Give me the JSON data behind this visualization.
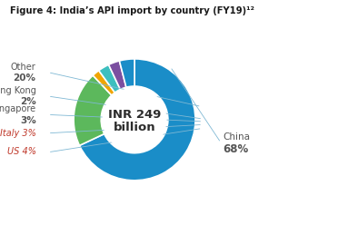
{
  "title": "Figure 4: India’s API import by country (FY19)¹²",
  "center_text_line1": "INR 249",
  "center_text_line2": "billion",
  "slices": [
    {
      "label": "China",
      "pct": 68,
      "color": "#1a8dc8"
    },
    {
      "label": "Other",
      "pct": 20,
      "color": "#5cb85c"
    },
    {
      "label": "Hong Kong",
      "pct": 2,
      "color": "#f0a500"
    },
    {
      "label": "Singapore",
      "pct": 3,
      "color": "#3dbfbf"
    },
    {
      "label": "Italy",
      "pct": 3,
      "color": "#7b4fa0"
    },
    {
      "label": "US",
      "pct": 4,
      "color": "#1a8dc8"
    }
  ],
  "label_colors": {
    "China": "#555555",
    "Other": "#555555",
    "Hong Kong": "#555555",
    "Singapore": "#555555",
    "Italy": "#c0392b",
    "US": "#c0392b"
  },
  "background_color": "#ffffff",
  "title_color": "#1a1a1a",
  "center_text_color": "#2c2c2c",
  "startangle": 90,
  "donut_width": 0.45
}
